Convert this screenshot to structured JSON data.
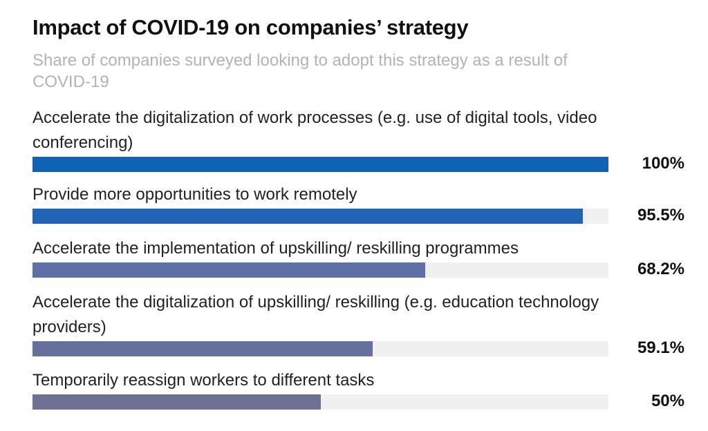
{
  "chart_data": {
    "type": "bar",
    "orientation": "horizontal",
    "title": "Impact of COVID-19 on companies’ strategy",
    "subtitle": "Share of companies surveyed looking to adopt this strategy as a result of COVID-19",
    "xlim": [
      0,
      100
    ],
    "categories": [
      "Accelerate the digitalization of work processes (e.g. use of digital tools, video conferencing)",
      "Provide more opportunities to work remotely",
      "Accelerate the implementation of upskilling/ reskilling programmes",
      "Accelerate the digitalization of upskilling/ reskilling (e.g. education technology providers)",
      "Temporarily reassign workers to different tasks"
    ],
    "values": [
      100,
      95.5,
      68.2,
      59.1,
      50
    ],
    "value_labels": [
      "100%",
      "95.5%",
      "68.2%",
      "59.1%",
      "50%"
    ],
    "colors": [
      "#0f62b4",
      "#2164b6",
      "#5f70a6",
      "#66709d",
      "#6f7095"
    ],
    "track_color": "#f0f0f0",
    "grid": false,
    "legend": "none"
  }
}
